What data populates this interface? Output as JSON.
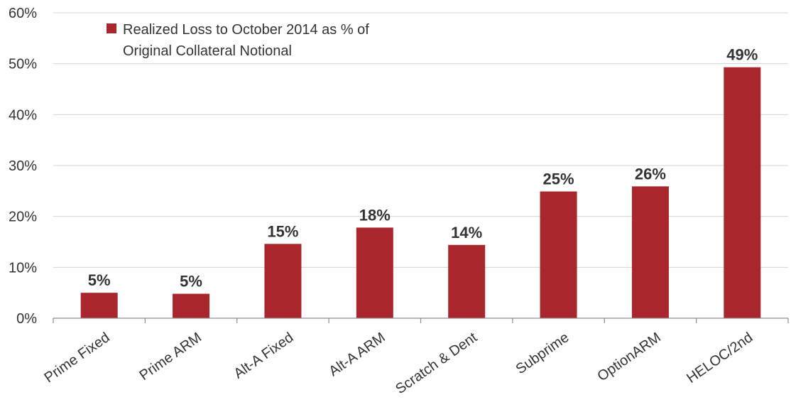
{
  "chart_data": {
    "type": "bar",
    "categories": [
      "Prime Fixed",
      "Prime ARM",
      "Alt-A Fixed",
      "Alt-A ARM",
      "Scratch & Dent",
      "Subprime",
      "OptionARM",
      "HELOC/2nd"
    ],
    "series": [
      {
        "name": "Realized Loss to October 2014 as % of Original Collateral Notional",
        "values": [
          5,
          4.8,
          14.6,
          17.8,
          14.4,
          24.9,
          25.9,
          49.3
        ],
        "data_labels": [
          "5%",
          "5%",
          "15%",
          "18%",
          "14%",
          "25%",
          "26%",
          "49%"
        ],
        "color": "#a9262d"
      }
    ],
    "legend": {
      "lines": [
        "Realized Loss to October 2014 as % of",
        "Original Collateral Notional"
      ],
      "position": "top-left"
    },
    "title": "",
    "xlabel": "",
    "ylabel": "",
    "ylim": [
      0,
      60
    ],
    "yticks": [
      0,
      10,
      20,
      30,
      40,
      50,
      60
    ],
    "ytick_labels": [
      "0%",
      "10%",
      "20%",
      "30%",
      "40%",
      "50%",
      "60%"
    ],
    "grid": true
  }
}
